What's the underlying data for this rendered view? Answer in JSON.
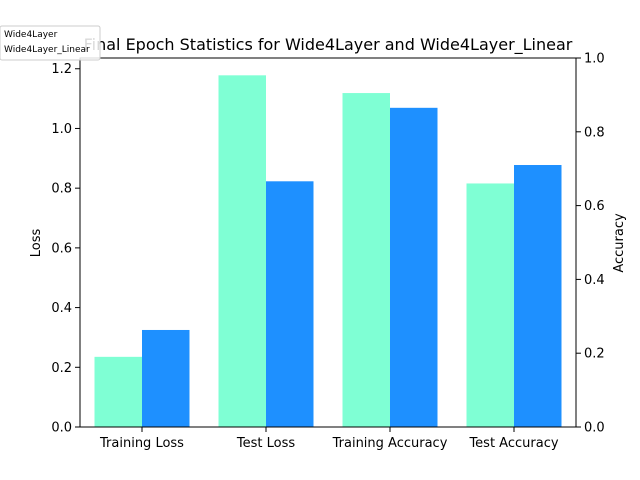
{
  "chart_data": {
    "type": "bar",
    "title": "Final Epoch Statistics for Wide4Layer and Wide4Layer_Linear",
    "categories": [
      "Training Loss",
      "Test Loss",
      "Training Accuracy",
      "Test Accuracy"
    ],
    "series": [
      {
        "name": "Wide4Layer",
        "color": "#7fffd4",
        "values": [
          0.235,
          1.178,
          0.905,
          0.66
        ]
      },
      {
        "name": "Wide4Layer_Linear",
        "color": "#1e90ff",
        "values": [
          0.325,
          0.823,
          0.865,
          0.71
        ]
      }
    ],
    "value_axis_for_category": [
      "left",
      "left",
      "right",
      "right"
    ],
    "left_axis": {
      "label": "Loss",
      "ylim": [
        0,
        1.236
      ],
      "ticks": [
        0.0,
        0.2,
        0.4,
        0.6,
        0.8,
        1.0,
        1.2
      ]
    },
    "right_axis": {
      "label": "Accuracy",
      "ylim": [
        0,
        1.0
      ],
      "ticks": [
        0.0,
        0.2,
        0.4,
        0.6,
        0.8,
        1.0
      ]
    },
    "grid": false,
    "legend_placement": "top-left"
  }
}
